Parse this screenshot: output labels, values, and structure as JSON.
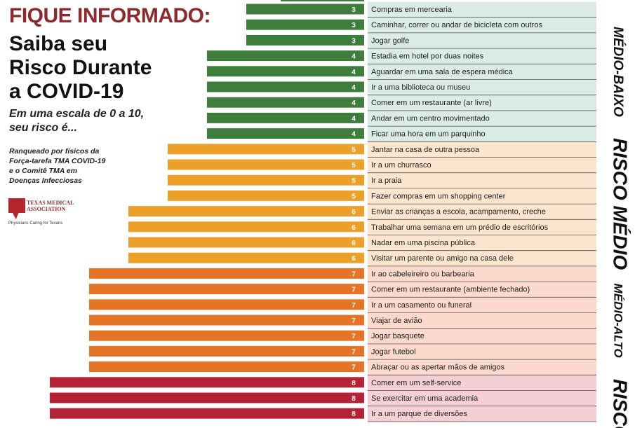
{
  "header": {
    "line1": "FIQUE INFORMADO:",
    "title_line1": "Saiba seu",
    "title_line2": "Risco Durante",
    "title_line3": "a COVID-19",
    "scale_line1": "Em uma escala de 0 a 10,",
    "scale_line2": "seu risco é...",
    "credit_line1": "Ranqueado por físicos da",
    "credit_line2": "Força-tarefa TMA COVID-19",
    "credit_line3": "e o Comitê TMA em",
    "credit_line4": "Doenças Infecciosas"
  },
  "logo": {
    "name_line1": "TEXAS MEDICAL",
    "name_line2": "ASSOCIATION",
    "tagline": "Physicians Caring for Texans"
  },
  "colors": {
    "green": "#3f7d3c",
    "yellow": "#eca02a",
    "orange": "#e57427",
    "red": "#b42233",
    "band_low_mid": "#dbece5",
    "band_mid": "#fce5cf",
    "band_mid_high": "#fbd9cc",
    "band_high": "#f6cfd6"
  },
  "chart_data": {
    "type": "bar",
    "orientation": "horizontal",
    "xlim": [
      0,
      10
    ],
    "categories": [
      "Compras em mercearia",
      "Caminhar, correr ou andar de bicicleta com outros",
      "Jogar golfe",
      "Estadia em hotel por duas noites",
      "Aguardar em uma sala de espera médica",
      "Ir a uma biblioteca ou museu",
      "Comer em um restaurante (ar livre)",
      "Andar em um centro movimentado",
      "Ficar uma hora em um parquinho",
      "Jantar na casa de outra pessoa",
      "Ir a um churrasco",
      "Ir a praia",
      "Fazer compras em um shopping center",
      "Enviar as crianças a escola, acampamento, creche",
      "Trabalhar uma semana em um prédio de escritórios",
      "Nadar em uma piscina pública",
      "Visitar um parente ou amigo na casa dele",
      "Ir ao cabeleireiro ou barbearia",
      "Comer em um restaurante (ambiente fechado)",
      "Ir a um casamento ou funeral",
      "Viajar de avião",
      "Jogar basquete",
      "Jogar futebol",
      "Abraçar ou as apertar mãos de amigos",
      "Comer em um self-service",
      "Se exercitar em uma academia",
      "Ir a um parque de diversões"
    ],
    "values": [
      3,
      3,
      3,
      4,
      4,
      4,
      4,
      4,
      4,
      5,
      5,
      5,
      5,
      6,
      6,
      6,
      6,
      7,
      7,
      7,
      7,
      7,
      7,
      7,
      8,
      8,
      8
    ],
    "bands": [
      {
        "label": "MÉDIO-BAIXO",
        "from": 0,
        "to": 8
      },
      {
        "label": "RISCO MÉDIO",
        "from": 9,
        "to": 16
      },
      {
        "label": "MÉDIO-ALTO",
        "from": 17,
        "to": 23
      },
      {
        "label": "RISCO",
        "from": 24,
        "to": 26
      }
    ]
  }
}
